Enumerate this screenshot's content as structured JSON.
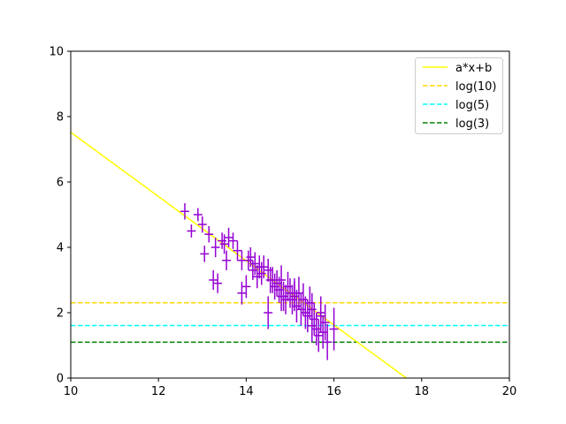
{
  "chart_data": {
    "type": "scatter",
    "xlim": [
      10,
      20
    ],
    "ylim": [
      0,
      10
    ],
    "xticks": [
      "10",
      "12",
      "14",
      "16",
      "18",
      "20"
    ],
    "yticks": [
      "0",
      "2",
      "4",
      "6",
      "8",
      "10"
    ],
    "grid": false,
    "legend_position": "top-right",
    "fit_line": {
      "name": "a*x+b",
      "color": "#ffff00",
      "x": [
        10,
        17.65
      ],
      "y": [
        7.52,
        0
      ]
    },
    "hlines": [
      {
        "name": "log(10)",
        "value": 2.3026,
        "color": "#ffd700",
        "style": "dashed"
      },
      {
        "name": "log(5)",
        "value": 1.6094,
        "color": "#00ffff",
        "style": "dashed"
      },
      {
        "name": "log(3)",
        "value": 1.0986,
        "color": "#008000",
        "style": "dashed"
      }
    ],
    "points": {
      "color": "#9400d3",
      "x": [
        12.6,
        12.75,
        12.9,
        13.0,
        13.05,
        13.15,
        13.25,
        13.35,
        13.45,
        13.5,
        13.55,
        13.7,
        13.8,
        13.9,
        14.0,
        14.05,
        14.1,
        14.15,
        14.2,
        14.25,
        14.3,
        14.35,
        14.4,
        14.5,
        14.55,
        14.6,
        14.65,
        14.7,
        14.75,
        14.8,
        14.85,
        14.9,
        14.95,
        15.0,
        15.05,
        15.1,
        15.15,
        15.2,
        15.25,
        15.3,
        15.35,
        15.4,
        15.45,
        15.5,
        15.55,
        15.6,
        15.65,
        15.7,
        15.75,
        15.8,
        15.85,
        16.0,
        13.3,
        13.6,
        14.5,
        13.9,
        15.5,
        15.7,
        15.1,
        14.8
      ],
      "y": [
        5.1,
        4.5,
        5.0,
        4.7,
        3.8,
        4.4,
        3.0,
        2.9,
        4.2,
        4.1,
        3.6,
        4.2,
        3.9,
        2.6,
        2.8,
        3.6,
        3.7,
        3.3,
        3.5,
        3.1,
        3.4,
        3.2,
        3.4,
        2.0,
        3.0,
        3.0,
        2.8,
        2.9,
        2.7,
        3.0,
        2.5,
        2.4,
        2.8,
        2.6,
        2.4,
        2.5,
        2.2,
        2.6,
        2.1,
        2.4,
        2.0,
        1.9,
        2.3,
        1.6,
        1.8,
        1.5,
        1.3,
        2.0,
        1.4,
        1.7,
        1.1,
        1.5,
        4.0,
        4.3,
        3.3,
        3.6,
        2.1,
        1.9,
        2.6,
        2.5
      ],
      "xerr": [
        0.1,
        0.1,
        0.1,
        0.1,
        0.1,
        0.1,
        0.1,
        0.1,
        0.1,
        0.1,
        0.1,
        0.1,
        0.1,
        0.1,
        0.1,
        0.1,
        0.1,
        0.1,
        0.1,
        0.1,
        0.1,
        0.1,
        0.1,
        0.1,
        0.1,
        0.1,
        0.1,
        0.1,
        0.1,
        0.1,
        0.1,
        0.1,
        0.1,
        0.1,
        0.1,
        0.1,
        0.1,
        0.1,
        0.1,
        0.1,
        0.1,
        0.1,
        0.1,
        0.1,
        0.1,
        0.1,
        0.1,
        0.1,
        0.1,
        0.1,
        0.1,
        0.1,
        0.1,
        0.1,
        0.1,
        0.1,
        0.1,
        0.1,
        0.1,
        0.1
      ],
      "yerr": [
        0.25,
        0.2,
        0.2,
        0.25,
        0.25,
        0.25,
        0.3,
        0.3,
        0.25,
        0.3,
        0.3,
        0.25,
        0.3,
        0.35,
        0.35,
        0.3,
        0.3,
        0.3,
        0.35,
        0.35,
        0.35,
        0.35,
        0.35,
        0.5,
        0.4,
        0.4,
        0.4,
        0.4,
        0.4,
        0.45,
        0.45,
        0.45,
        0.45,
        0.45,
        0.45,
        0.45,
        0.5,
        0.5,
        0.5,
        0.5,
        0.5,
        0.5,
        0.5,
        0.5,
        0.5,
        0.5,
        0.5,
        0.5,
        0.5,
        0.55,
        0.55,
        0.65,
        0.3,
        0.3,
        0.35,
        0.3,
        0.5,
        0.5,
        0.45,
        0.45
      ]
    }
  }
}
